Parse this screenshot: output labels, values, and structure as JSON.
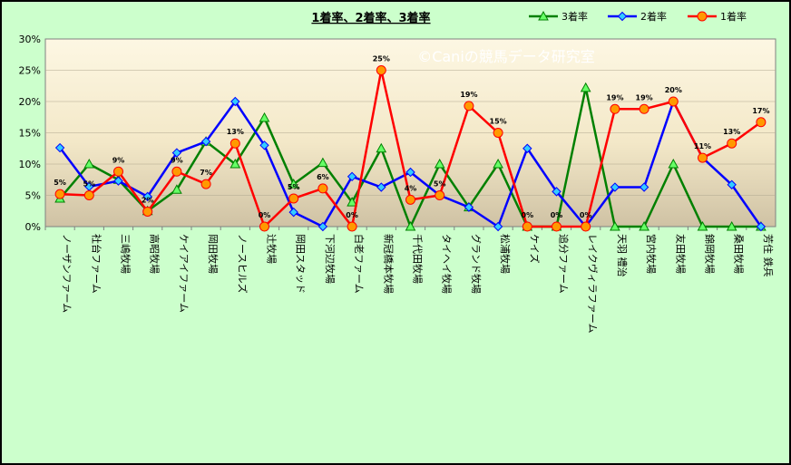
{
  "chart_data": {
    "type": "line",
    "title": "1着率、2着率、3着率",
    "watermark": "©Caniの競馬データ研究室",
    "categories": [
      "ノーザンファーム",
      "社台ファーム",
      "三嶋牧場",
      "高昭牧場",
      "ケイアイファーム",
      "岡田牧場",
      "ノースヒルズ",
      "辻牧場",
      "岡田スタッド",
      "下河辺牧場",
      "白老ファーム",
      "新冠橋本牧場",
      "千代田牧場",
      "タイヘイ牧場",
      "グランド牧場",
      "松浦牧場",
      "ケイズ",
      "追分ファーム",
      "レイクヴィラファーム",
      "天羽 禮治",
      "宮内牧場",
      "友田牧場",
      "錦岡牧場",
      "桑田牧場",
      "芳住 鉄兵"
    ],
    "ylim": [
      0,
      30
    ],
    "yticks": [
      "0%",
      "5%",
      "10%",
      "15%",
      "20%",
      "25%",
      "30%"
    ],
    "legend_placement": "top-right",
    "series": [
      {
        "name": "3着率",
        "color": "#008000",
        "marker": "triangle",
        "values": [
          4.5,
          10,
          7.5,
          2.5,
          5.9,
          13.6,
          10,
          17.4,
          6.8,
          10.2,
          3.9,
          12.5,
          0,
          10,
          3.1,
          10,
          0,
          0,
          22.2,
          0,
          0,
          10,
          0,
          0,
          0
        ]
      },
      {
        "name": "2着率",
        "color": "#0000ff",
        "marker": "diamond",
        "values": [
          12.6,
          6.4,
          7.3,
          4.8,
          11.8,
          13.6,
          20,
          13,
          2.3,
          0,
          8,
          6.3,
          8.7,
          5,
          3.1,
          0,
          12.5,
          5.6,
          0,
          6.3,
          6.3,
          20,
          11,
          6.7,
          0
        ]
      },
      {
        "name": "1着率",
        "color": "#ff0000",
        "marker": "circle",
        "values": [
          5.2,
          5,
          8.8,
          2.4,
          8.8,
          6.8,
          13.3,
          0,
          4.5,
          6.1,
          0,
          25,
          4.3,
          5,
          19.3,
          15,
          0,
          0,
          0,
          18.8,
          18.8,
          20,
          11,
          13.3,
          16.7
        ]
      }
    ],
    "data_labels": [
      {
        "category": 0,
        "text": "5%"
      },
      {
        "category": 1,
        "text": "5%"
      },
      {
        "category": 2,
        "text": "9%"
      },
      {
        "category": 3,
        "text": "2%"
      },
      {
        "category": 4,
        "text": "9%"
      },
      {
        "category": 5,
        "text": "7%"
      },
      {
        "category": 6,
        "text": "13%"
      },
      {
        "category": 7,
        "text": "0%"
      },
      {
        "category": 8,
        "text": "5%"
      },
      {
        "category": 9,
        "text": "6%"
      },
      {
        "category": 10,
        "text": "0%"
      },
      {
        "category": 11,
        "text": "25%"
      },
      {
        "category": 12,
        "text": "4%"
      },
      {
        "category": 13,
        "text": "5%"
      },
      {
        "category": 14,
        "text": "19%"
      },
      {
        "category": 15,
        "text": "15%"
      },
      {
        "category": 16,
        "text": "0%"
      },
      {
        "category": 17,
        "text": "0%"
      },
      {
        "category": 18,
        "text": "0%"
      },
      {
        "category": 19,
        "text": "19%"
      },
      {
        "category": 20,
        "text": "19%"
      },
      {
        "category": 21,
        "text": "20%"
      },
      {
        "category": 22,
        "text": "11%"
      },
      {
        "category": 23,
        "text": "13%"
      },
      {
        "category": 24,
        "text": "17%"
      }
    ]
  }
}
